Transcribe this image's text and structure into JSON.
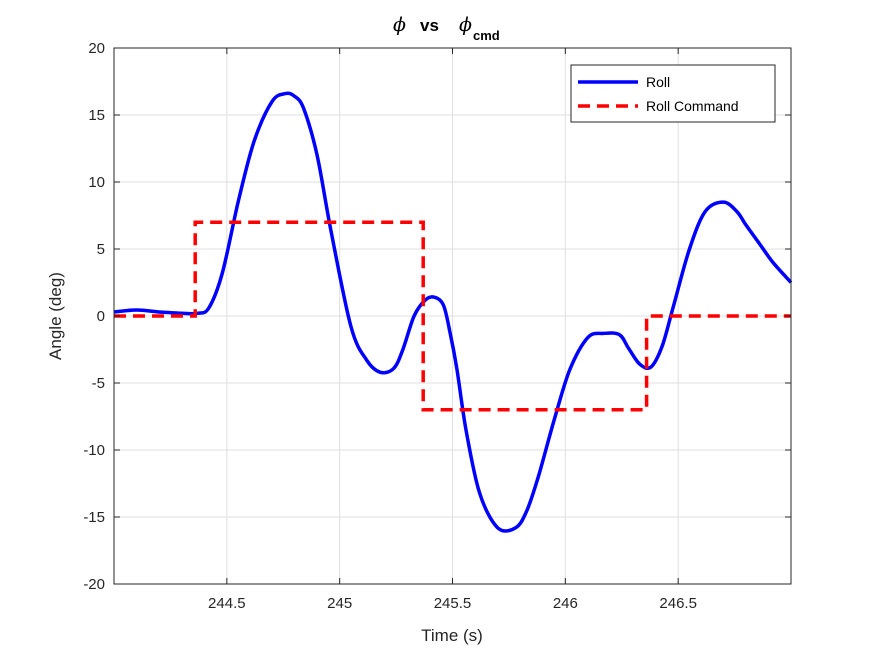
{
  "chart_data": {
    "type": "line",
    "title": {
      "symbol": "ϕ",
      "vs": "vs",
      "symbol2": "ϕ",
      "subscript": "cmd"
    },
    "xlabel": "Time (s)",
    "ylabel": "Angle (deg)",
    "xlim": [
      244.0,
      247.0
    ],
    "ylim": [
      -20,
      20
    ],
    "x_ticks": [
      244.5,
      245,
      245.5,
      246,
      246.5
    ],
    "x_tick_labels": [
      "244.5",
      "245",
      "245.5",
      "246",
      "246.5"
    ],
    "y_ticks": [
      -20,
      -15,
      -10,
      -5,
      0,
      5,
      10,
      15,
      20
    ],
    "y_tick_labels": [
      "-20",
      "-15",
      "-10",
      "-5",
      "0",
      "5",
      "10",
      "15",
      "20"
    ],
    "grid": true,
    "legend_position": "top-right",
    "series": [
      {
        "name": "Roll",
        "color": "#0000ff",
        "style": "solid",
        "x": [
          244.0,
          244.1,
          244.2,
          244.3,
          244.37,
          244.42,
          244.48,
          244.55,
          244.62,
          244.7,
          244.76,
          244.8,
          244.84,
          244.9,
          244.96,
          245.05,
          245.12,
          245.18,
          245.24,
          245.28,
          245.33,
          245.38,
          245.42,
          245.46,
          245.49,
          245.52,
          245.56,
          245.62,
          245.7,
          245.78,
          245.83,
          245.88,
          245.95,
          246.02,
          246.1,
          246.17,
          246.24,
          246.28,
          246.33,
          246.38,
          246.43,
          246.48,
          246.55,
          246.62,
          246.7,
          246.76,
          246.8,
          246.86,
          246.92,
          247.0
        ],
        "y": [
          0.3,
          0.45,
          0.3,
          0.2,
          0.2,
          0.6,
          3.2,
          8.5,
          13.0,
          16.0,
          16.6,
          16.4,
          15.5,
          12.0,
          6.5,
          -0.8,
          -3.3,
          -4.2,
          -3.9,
          -2.5,
          0.0,
          1.2,
          1.4,
          0.8,
          -1.3,
          -4.0,
          -8.5,
          -13.2,
          -15.8,
          -15.8,
          -14.5,
          -12.0,
          -7.8,
          -4.0,
          -1.6,
          -1.3,
          -1.4,
          -2.4,
          -3.6,
          -3.8,
          -2.2,
          0.8,
          5.0,
          7.8,
          8.5,
          7.8,
          6.8,
          5.4,
          4.0,
          2.5
        ]
      },
      {
        "name": "Roll Command",
        "color": "#ff0000",
        "style": "dashed",
        "x": [
          244.0,
          244.36,
          244.36,
          245.37,
          245.37,
          246.36,
          246.36,
          247.0
        ],
        "y": [
          0,
          0,
          7,
          7,
          -7,
          -7,
          0,
          0
        ]
      }
    ]
  }
}
